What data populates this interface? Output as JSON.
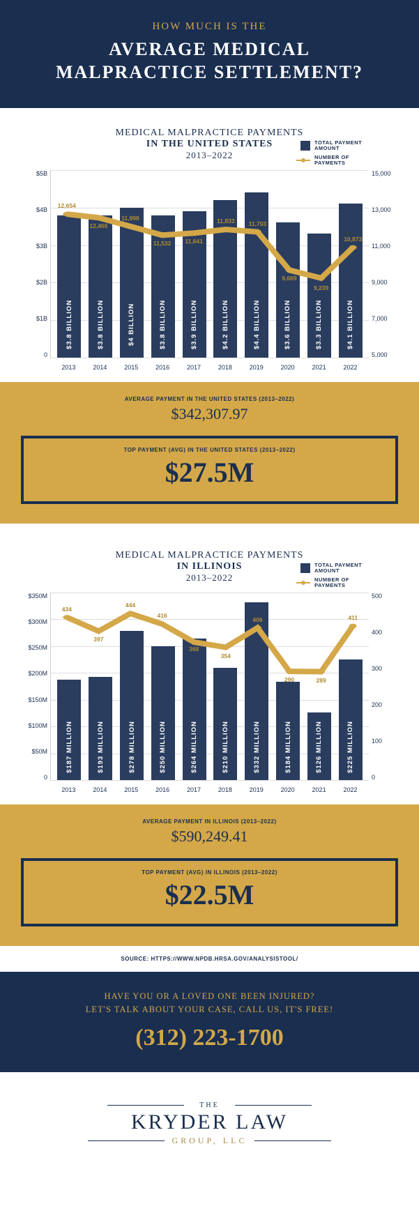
{
  "header": {
    "line1": "HOW MUCH IS THE",
    "line2_a": "AVERAGE MEDICAL",
    "line2_b": "MALPRACTICE SETTLEMENT?"
  },
  "legend": {
    "bar": "TOTAL PAYMENT AMOUNT",
    "line": "NUMBER OF PAYMENTS"
  },
  "colors": {
    "bar": "#2a3d5f",
    "line": "#d4a849",
    "header_bg": "#1a2e4f",
    "stats_bg": "#d4a849"
  },
  "us": {
    "title1": "MEDICAL MALPRACTICE PAYMENTS",
    "title2": "IN THE UNITED STATES",
    "title3": "2013–2022",
    "y_left_labels": [
      "$5B",
      "$4B",
      "$3B",
      "$2B",
      "$1B",
      "0"
    ],
    "y_left_max": 5.0,
    "y_right_labels": [
      "15,000",
      "13,000",
      "11,000",
      "9,000",
      "7,000",
      "5,000"
    ],
    "y_right_min": 5000,
    "y_right_max": 15000,
    "years": [
      "2013",
      "2014",
      "2015",
      "2016",
      "2017",
      "2018",
      "2019",
      "2020",
      "2021",
      "2022"
    ],
    "bar_values": [
      3.8,
      3.8,
      4.0,
      3.8,
      3.9,
      4.2,
      4.4,
      3.6,
      3.3,
      4.1
    ],
    "bar_labels": [
      "$3.8 BILLION",
      "$3.8 BILLION",
      "$4 BILLION",
      "$3.8 BILLION",
      "$3.9 BILLION",
      "$4.2 BILLION",
      "$4.4 BILLION",
      "$3.6 BILLION",
      "$3.3 BILLION",
      "$4.1 BILLION"
    ],
    "line_values": [
      12654,
      12460,
      11998,
      11532,
      11641,
      11833,
      11703,
      9669,
      9239,
      10873
    ],
    "line_labels": [
      "12,654",
      "12,460",
      "11,998",
      "11,532",
      "11,641",
      "11,833",
      "11,703",
      "9,669",
      "9,239",
      "10,873"
    ],
    "label_dy": [
      -12,
      12,
      -12,
      12,
      12,
      -12,
      -12,
      12,
      14,
      -12
    ],
    "avg_label": "AVERAGE PAYMENT IN THE UNITED STATES (2013–2022)",
    "avg_val": "$342,307.97",
    "top_label": "TOP PAYMENT (AVG) IN THE UNITED STATES (2013–2022)",
    "top_val": "$27.5M"
  },
  "il": {
    "title1": "MEDICAL MALPRACTICE PAYMENTS",
    "title2": "IN ILLINOIS",
    "title3": "2013–2022",
    "y_left_labels": [
      "$350M",
      "$300M",
      "$250M",
      "$200M",
      "$150M",
      "$100M",
      "$50M",
      "0"
    ],
    "y_left_max": 350,
    "y_right_labels": [
      "500",
      "400",
      "300",
      "200",
      "100",
      "0"
    ],
    "y_right_min": 0,
    "y_right_max": 500,
    "years": [
      "2013",
      "2014",
      "2015",
      "2016",
      "2017",
      "2018",
      "2019",
      "2020",
      "2021",
      "2022"
    ],
    "bar_values": [
      187,
      193,
      278,
      250,
      264,
      210,
      332,
      184,
      126,
      225
    ],
    "bar_labels": [
      "$187 MILLION",
      "$193 MILLION",
      "$278 MILLION",
      "$250 MILLION",
      "$264 MILLION",
      "$210 MILLION",
      "$332 MILLION",
      "$184 MILLION",
      "$126 MILLION",
      "$225 MILLION"
    ],
    "line_values": [
      434,
      397,
      444,
      416,
      368,
      354,
      406,
      290,
      289,
      411
    ],
    "line_labels": [
      "434",
      "397",
      "444",
      "416",
      "368",
      "354",
      "406",
      "290",
      "289",
      "411"
    ],
    "label_dy": [
      -12,
      12,
      -12,
      -12,
      10,
      12,
      -12,
      12,
      12,
      -12
    ],
    "avg_label": "AVERAGE PAYMENT IN ILLINOIS (2013–2022)",
    "avg_val": "$590,249.41",
    "top_label": "TOP PAYMENT (AVG) IN ILLINOIS (2013–2022)",
    "top_val": "$22.5M"
  },
  "source": "SOURCE: HTTPS://WWW.NPDB.HRSA.GOV/ANALYSISTOOL/",
  "cta": {
    "line1": "HAVE YOU OR A LOVED ONE BEEN INJURED?",
    "line2": "LET'S TALK ABOUT YOUR CASE, CALL US, IT'S FREE!",
    "phone": "(312) 223-1700"
  },
  "logo": {
    "the": "THE",
    "main": "KRYDER LAW",
    "sub": "GROUP, LLC"
  }
}
